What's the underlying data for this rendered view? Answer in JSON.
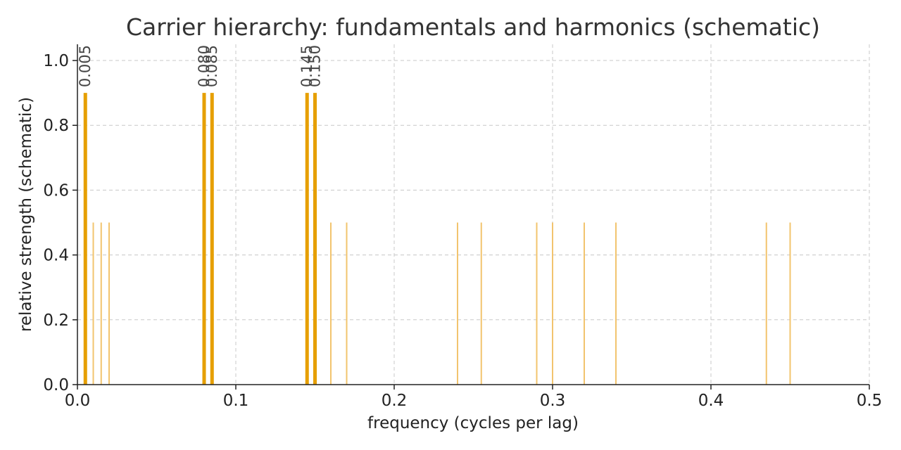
{
  "chart_data": {
    "type": "bar",
    "title": "Carrier hierarchy: fundamentals and harmonics (schematic)",
    "xlabel": "frequency (cycles per lag)",
    "ylabel": "relative strength (schematic)",
    "xlim": [
      0.0,
      0.5
    ],
    "ylim": [
      0.0,
      1.05
    ],
    "x_ticks": [
      0.0,
      0.1,
      0.2,
      0.3,
      0.4,
      0.5
    ],
    "x_tick_labels": [
      "0.0",
      "0.1",
      "0.2",
      "0.3",
      "0.4",
      "0.5"
    ],
    "y_ticks": [
      0.0,
      0.2,
      0.4,
      0.6,
      0.8,
      1.0
    ],
    "y_tick_labels": [
      "0.0",
      "0.2",
      "0.4",
      "0.6",
      "0.8",
      "1.0"
    ],
    "grid": true,
    "series": [
      {
        "role": "fundamentals",
        "color": "#e69f00",
        "x": [
          0.005,
          0.08,
          0.085,
          0.145,
          0.15
        ],
        "values": [
          0.9,
          0.9,
          0.9,
          0.9,
          0.9
        ],
        "labels": [
          "0.005",
          "0.080",
          "0.085",
          "0.145",
          "0.150"
        ]
      },
      {
        "role": "harmonics",
        "color": "#f2c46e",
        "x": [
          0.01,
          0.015,
          0.02,
          0.16,
          0.17,
          0.24,
          0.255,
          0.29,
          0.3,
          0.32,
          0.34,
          0.435,
          0.45
        ],
        "values": [
          0.5,
          0.5,
          0.5,
          0.5,
          0.5,
          0.5,
          0.5,
          0.5,
          0.5,
          0.5,
          0.5,
          0.5,
          0.5
        ]
      }
    ]
  }
}
